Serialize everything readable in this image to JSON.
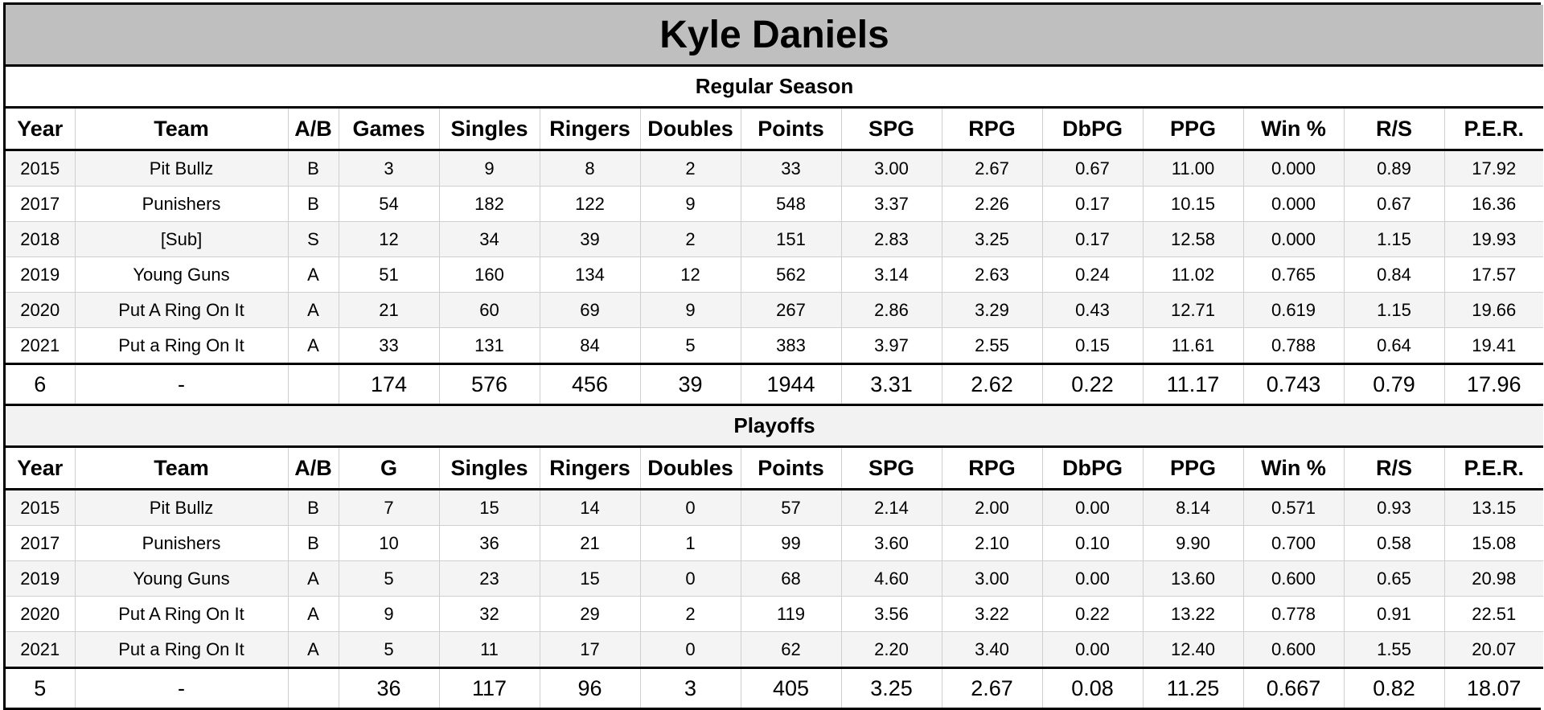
{
  "title": "Kyle Daniels",
  "regular_season": {
    "label": "Regular Season",
    "headers": [
      "Year",
      "Team",
      "A/B",
      "Games",
      "Singles",
      "Ringers",
      "Doubles",
      "Points",
      "SPG",
      "RPG",
      "DbPG",
      "PPG",
      "Win %",
      "R/S",
      "P.E.R."
    ],
    "rows": [
      [
        "2015",
        "Pit Bullz",
        "B",
        "3",
        "9",
        "8",
        "2",
        "33",
        "3.00",
        "2.67",
        "0.67",
        "11.00",
        "0.000",
        "0.89",
        "17.92"
      ],
      [
        "2017",
        "Punishers",
        "B",
        "54",
        "182",
        "122",
        "9",
        "548",
        "3.37",
        "2.26",
        "0.17",
        "10.15",
        "0.000",
        "0.67",
        "16.36"
      ],
      [
        "2018",
        "[Sub]",
        "S",
        "12",
        "34",
        "39",
        "2",
        "151",
        "2.83",
        "3.25",
        "0.17",
        "12.58",
        "0.000",
        "1.15",
        "19.93"
      ],
      [
        "2019",
        "Young Guns",
        "A",
        "51",
        "160",
        "134",
        "12",
        "562",
        "3.14",
        "2.63",
        "0.24",
        "11.02",
        "0.765",
        "0.84",
        "17.57"
      ],
      [
        "2020",
        "Put A Ring On It",
        "A",
        "21",
        "60",
        "69",
        "9",
        "267",
        "2.86",
        "3.29",
        "0.43",
        "12.71",
        "0.619",
        "1.15",
        "19.66"
      ],
      [
        "2021",
        "Put a Ring On It",
        "A",
        "33",
        "131",
        "84",
        "5",
        "383",
        "3.97",
        "2.55",
        "0.15",
        "11.61",
        "0.788",
        "0.64",
        "19.41"
      ]
    ],
    "totals": [
      "6",
      "-",
      "",
      "174",
      "576",
      "456",
      "39",
      "1944",
      "3.31",
      "2.62",
      "0.22",
      "11.17",
      "0.743",
      "0.79",
      "17.96"
    ]
  },
  "playoffs": {
    "label": "Playoffs",
    "headers": [
      "Year",
      "Team",
      "A/B",
      "G",
      "Singles",
      "Ringers",
      "Doubles",
      "Points",
      "SPG",
      "RPG",
      "DbPG",
      "PPG",
      "Win %",
      "R/S",
      "P.E.R."
    ],
    "rows": [
      [
        "2015",
        "Pit Bullz",
        "B",
        "7",
        "15",
        "14",
        "0",
        "57",
        "2.14",
        "2.00",
        "0.00",
        "8.14",
        "0.571",
        "0.93",
        "13.15"
      ],
      [
        "2017",
        "Punishers",
        "B",
        "10",
        "36",
        "21",
        "1",
        "99",
        "3.60",
        "2.10",
        "0.10",
        "9.90",
        "0.700",
        "0.58",
        "15.08"
      ],
      [
        "2019",
        "Young Guns",
        "A",
        "5",
        "23",
        "15",
        "0",
        "68",
        "4.60",
        "3.00",
        "0.00",
        "13.60",
        "0.600",
        "0.65",
        "20.98"
      ],
      [
        "2020",
        "Put A Ring On It",
        "A",
        "9",
        "32",
        "29",
        "2",
        "119",
        "3.56",
        "3.22",
        "0.22",
        "13.22",
        "0.778",
        "0.91",
        "22.51"
      ],
      [
        "2021",
        "Put a Ring On It",
        "A",
        "5",
        "11",
        "17",
        "0",
        "62",
        "2.20",
        "3.40",
        "0.00",
        "12.40",
        "0.600",
        "1.55",
        "20.07"
      ]
    ],
    "totals": [
      "5",
      "-",
      "",
      "36",
      "117",
      "96",
      "3",
      "405",
      "3.25",
      "2.67",
      "0.08",
      "11.25",
      "0.667",
      "0.82",
      "18.07"
    ]
  }
}
